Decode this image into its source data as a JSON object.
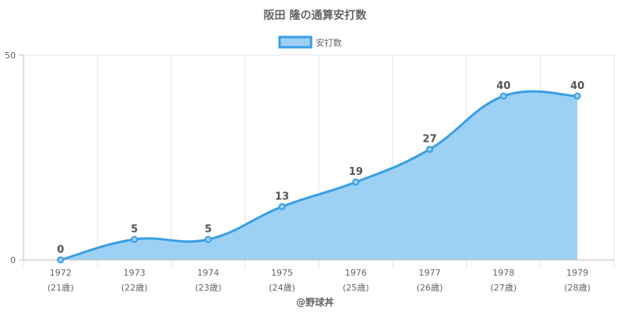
{
  "chart_data": {
    "type": "area",
    "title": "阪田 隆の通算安打数",
    "legend": {
      "label": "安打数",
      "position": "top"
    },
    "x": [
      "1972",
      "1973",
      "1974",
      "1975",
      "1976",
      "1977",
      "1978",
      "1979"
    ],
    "x_sub": [
      "(21歳)",
      "(22歳)",
      "(23歳)",
      "(24歳)",
      "(25歳)",
      "(26歳)",
      "(27歳)",
      "(28歳)"
    ],
    "series": [
      {
        "name": "安打数",
        "values": [
          0,
          5,
          5,
          13,
          19,
          27,
          40,
          40
        ]
      }
    ],
    "ylim": [
      0,
      50
    ],
    "yticks": [
      "0",
      "50"
    ],
    "grid": true,
    "colors": {
      "line": "#3a9ee4",
      "fill": "#9dd0f5",
      "grid": "#e6e6e6",
      "axis": "#bbbbbb"
    },
    "footer": "@野球丼"
  }
}
